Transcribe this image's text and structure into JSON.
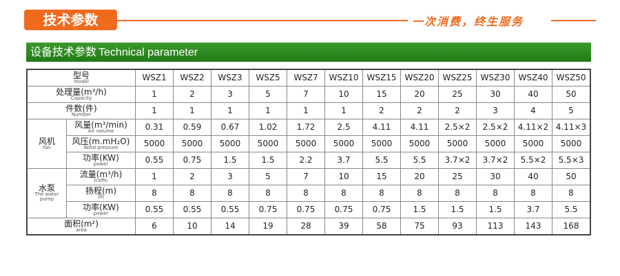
{
  "header": {
    "title": "技术参数",
    "slogan": "一次消费，终生服务"
  },
  "section": {
    "title_cn": "设备技术参数",
    "title_en": "Technical parameter"
  },
  "table": {
    "sections": [
      {
        "label": "型号",
        "sub": "model",
        "values": [
          "WSZ1",
          "WSZ2",
          "WSZ3",
          "WSZ5",
          "WSZ7",
          "WSZ10",
          "WSZ15",
          "WSZ20",
          "WSZ25",
          "WSZ30",
          "WSZ40",
          "WSZ50"
        ]
      },
      {
        "label": "处理量(m³/h)",
        "sub": "Capacity",
        "values": [
          1,
          2,
          3,
          5,
          7,
          10,
          15,
          20,
          25,
          30,
          40,
          50
        ]
      },
      {
        "label": "件数(件)",
        "sub": "Number",
        "values": [
          1,
          1,
          1,
          1,
          1,
          1,
          2,
          2,
          2,
          3,
          4,
          5
        ]
      },
      {
        "group": "风机",
        "group_sub": "fan",
        "rows": [
          {
            "label": "风量(m³/min)",
            "sub": "Air volume",
            "values": [
              0.31,
              0.59,
              0.67,
              1.02,
              1.72,
              2.5,
              4.11,
              4.11,
              "2.5×2",
              "2.5×2",
              "4.11×2",
              "4.11×3"
            ]
          },
          {
            "label": "风压(m.mH₂O)",
            "sub": "Wind pressure",
            "values": [
              5000,
              5000,
              5000,
              5000,
              5000,
              5000,
              5000,
              5000,
              5000,
              5000,
              5000,
              5000
            ]
          },
          {
            "label": "功率(KW)",
            "sub": "power",
            "values": [
              0.55,
              0.75,
              1.5,
              1.5,
              2.2,
              3.7,
              5.5,
              5.5,
              "3.7×2",
              "3.7×2",
              "5.5×2",
              "5.5×3"
            ]
          }
        ]
      },
      {
        "group": "水泵",
        "group_sub": "The water pump",
        "rows": [
          {
            "label": "流量(m³/h)",
            "sub": "traffic",
            "values": [
              1,
              2,
              3,
              5,
              7,
              10,
              15,
              20,
              25,
              30,
              40,
              50
            ]
          },
          {
            "label": "扬程(m)",
            "sub": "lift",
            "values": [
              8,
              8,
              8,
              8,
              8,
              8,
              8,
              8,
              8,
              8,
              8,
              8
            ]
          },
          {
            "label": "功率(KW)",
            "sub": "power",
            "values": [
              0.55,
              0.55,
              0.55,
              0.75,
              0.75,
              0.75,
              0.75,
              1.5,
              1.5,
              1.5,
              3.7,
              5.5
            ]
          }
        ]
      },
      {
        "label": "面积(m²)",
        "sub": "area",
        "values": [
          6,
          10,
          14,
          19,
          28,
          39,
          58,
          75,
          93,
          113,
          143,
          168
        ]
      }
    ]
  }
}
